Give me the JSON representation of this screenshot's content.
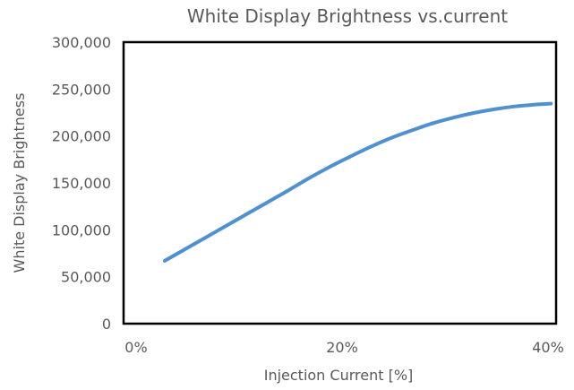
{
  "chart_data": {
    "type": "line",
    "title": "White Display Brightness vs.current",
    "xlabel": "Injection Current [%]",
    "ylabel": "White Display Brightness",
    "xlim": [
      0,
      42
    ],
    "ylim": [
      0,
      300000
    ],
    "x_ticks": [
      0,
      20,
      40
    ],
    "x_tick_labels": [
      "0%",
      "20%",
      "40%"
    ],
    "y_ticks": [
      0,
      50000,
      100000,
      150000,
      200000,
      250000,
      300000
    ],
    "y_tick_labels": [
      "0",
      "50,000",
      "100,000",
      "150,000",
      "200,000",
      "250,000",
      "300,000"
    ],
    "grid": false,
    "legend": "none",
    "series": [
      {
        "color": "#4f90d0",
        "x": [
          4,
          6,
          8,
          10,
          12,
          14,
          16,
          18,
          20,
          22,
          24,
          26,
          28,
          30,
          32,
          34,
          36,
          38,
          40,
          41.5
        ],
        "values": [
          67000,
          79500,
          92000,
          104500,
          117000,
          129500,
          142000,
          155000,
          167000,
          178000,
          188500,
          198000,
          206000,
          213500,
          219500,
          224500,
          228500,
          231500,
          233500,
          234500
        ]
      }
    ]
  }
}
